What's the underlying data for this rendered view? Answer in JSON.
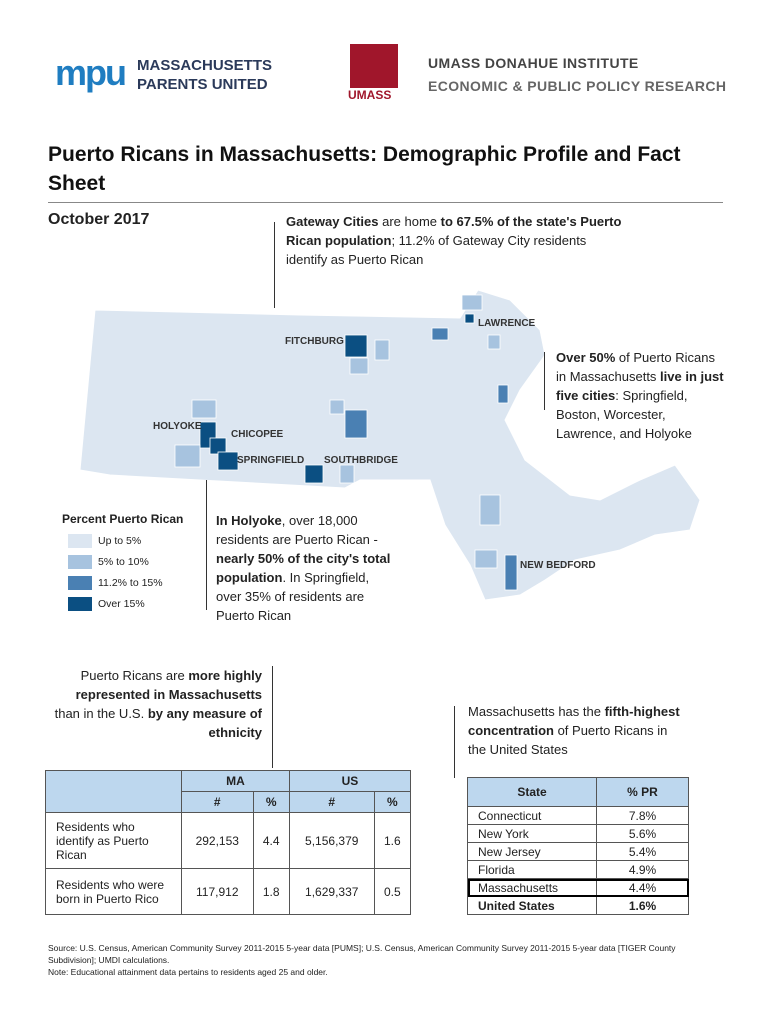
{
  "header": {
    "mpu_logo": "mpu",
    "mpu_name": [
      "MASSACHUSETTS",
      "PARENTS UNITED"
    ],
    "umass_logo": "UMASS",
    "umass_name": [
      "UMASS DONAHUE INSTITUTE",
      "ECONOMIC & PUBLIC POLICY RESEARCH"
    ]
  },
  "title": "Puerto Ricans in Massachusetts: Demographic Profile and Fact Sheet",
  "date": "October 2017",
  "callouts": [
    [
      "Gateway Cities",
      " are home ",
      "to 67.5% of the state's Puerto Rican population",
      "; 11.2% of Gateway City residents identify as Puerto Rican"
    ],
    [
      "Over 50%",
      " of Puerto Ricans in Massachusetts ",
      "live in just five cities",
      ": Springfield, Boston, Worcester, Lawrence, and Holyoke"
    ],
    [
      "In Holyoke",
      ", over 18,000 residents are Puerto Rican - ",
      "nearly 50% of the city's total population",
      ". In Springfield, over 35% of residents are Puerto Rican"
    ],
    [
      "Puerto Ricans are ",
      "more highly represented in Massachusetts",
      " than in the U.S. ",
      "by any measure of ethnicity"
    ],
    [
      "Massachusetts has the ",
      "fifth-highest concentration",
      " of Puerto Ricans in the United States"
    ]
  ],
  "map": {
    "labels": [
      "LAWRENCE",
      "FITCHBURG",
      "HOLYOKE",
      "CHICOPEE",
      "SPRINGFIELD",
      "SOUTHBRIDGE",
      "NEW BEDFORD"
    ],
    "legend": {
      "title": "Percent Puerto Rican",
      "items": [
        {
          "label": "Up to 5%",
          "color": "#dce6f1"
        },
        {
          "label": "5% to 10%",
          "color": "#a7c3df"
        },
        {
          "label": "11.2% to 15%",
          "color": "#4a80b3"
        },
        {
          "label": "Over 15%",
          "color": "#0b4f82"
        }
      ]
    }
  },
  "table1": {
    "groups": [
      "MA",
      "US"
    ],
    "subcols": [
      "#",
      "%",
      "#",
      "%"
    ],
    "rows": [
      [
        "Residents who identify as Puerto Rican",
        "292,153",
        "4.4",
        "5,156,379",
        "1.6"
      ],
      [
        "Residents who were born in Puerto Rico",
        "117,912",
        "1.8",
        "1,629,337",
        "0.5"
      ]
    ]
  },
  "table2": {
    "columns": [
      "State",
      "% PR"
    ],
    "rows": [
      [
        "Connecticut",
        "7.8%"
      ],
      [
        "New York",
        "5.6%"
      ],
      [
        "New Jersey",
        "5.4%"
      ],
      [
        "Florida",
        "4.9%"
      ],
      [
        "Massachusetts",
        "4.4%"
      ],
      [
        "United States",
        "1.6%"
      ]
    ],
    "highlight_row": 4,
    "bold_row": 5
  },
  "footer": [
    "Source: U.S. Census, American Community Survey 2011-2015 5-year data [PUMS]; U.S. Census, American Community Survey 2011-2015 5-year data [TIGER County Subdivision]; UMDI calculations.",
    "Note: Educational attainment data pertains to residents aged 25 and older."
  ]
}
